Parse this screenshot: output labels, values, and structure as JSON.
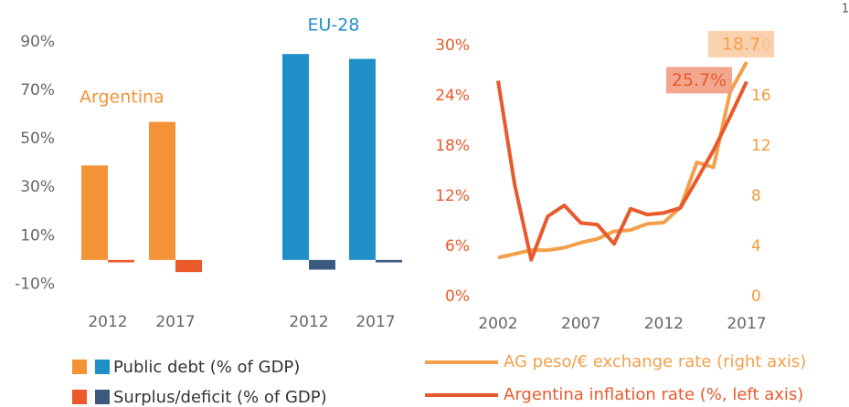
{
  "page_number": "1",
  "chart_data": [
    {
      "type": "bar",
      "groups": [
        "Argentina",
        "EU-28"
      ],
      "group_colors": [
        "#f39237",
        "#1f8fc8"
      ],
      "categories": [
        "2012",
        "2017",
        "2012",
        "2017"
      ],
      "series": [
        {
          "name": "Public debt (% of GDP)",
          "colors": [
            "#f39237",
            "#f39237",
            "#1f8fc8",
            "#1f8fc8"
          ],
          "values": [
            39,
            57,
            85,
            83
          ]
        },
        {
          "name": "Surplus/deficit (% of GDP)",
          "colors": [
            "#ea5a2a",
            "#ea5a2a",
            "#3c5a80",
            "#3c5a80"
          ],
          "values": [
            -1,
            -5,
            -4,
            -1
          ]
        }
      ],
      "ylim": [
        -17,
        96
      ],
      "yticks": [
        {
          "value": 90,
          "label": "90%"
        },
        {
          "value": 70,
          "label": "70%"
        },
        {
          "value": 50,
          "label": "50%"
        },
        {
          "value": 30,
          "label": "30%"
        },
        {
          "value": 10,
          "label": "10%"
        },
        {
          "value": -10,
          "label": "-10%"
        }
      ],
      "grid": false
    },
    {
      "type": "line",
      "x": [
        2002,
        2003,
        2004,
        2005,
        2006,
        2007,
        2008,
        2009,
        2010,
        2011,
        2012,
        2013,
        2014,
        2015,
        2016,
        2017
      ],
      "xlim": [
        2002,
        2017
      ],
      "xticks": [
        2002,
        2007,
        2012,
        2017
      ],
      "series": [
        {
          "name": "AG peso/€ exchange rate (right axis)",
          "color": "#f4a04a",
          "axis": "y2",
          "values": [
            3.1,
            3.4,
            3.7,
            3.7,
            3.9,
            4.3,
            4.6,
            5.2,
            5.3,
            5.8,
            5.9,
            7.1,
            10.7,
            10.3,
            16.3,
            18.7
          ],
          "end_label": 18.7,
          "end_label_bg": "#f9c9a0"
        },
        {
          "name": "Argentina inflation rate (%, left axis)",
          "color": "#e85a2c",
          "values": [
            25.8,
            13.4,
            4.4,
            9.6,
            10.9,
            8.8,
            8.6,
            6.3,
            10.5,
            9.8,
            10.0,
            10.6,
            14.0,
            17.5,
            21.5,
            25.7
          ],
          "end_label": 25.7,
          "value_labels": {
            "end_label": "25.7%"
          },
          "end_label_bg": "#f0977a"
        }
      ],
      "ylim": [
        0,
        30
      ],
      "yticks": [
        {
          "value": 0,
          "label": "0%"
        },
        {
          "value": 6,
          "label": "6%"
        },
        {
          "value": 12,
          "label": "12%"
        },
        {
          "value": 18,
          "label": "18%"
        },
        {
          "value": 24,
          "label": "24%"
        },
        {
          "value": 30,
          "label": "30%"
        }
      ],
      "y_color": "#e85a2c",
      "y2lim": [
        0,
        20
      ],
      "y2ticks": [
        0,
        4,
        8,
        12,
        16,
        20
      ],
      "y2_color": "#f39a3a",
      "grid": false
    }
  ]
}
